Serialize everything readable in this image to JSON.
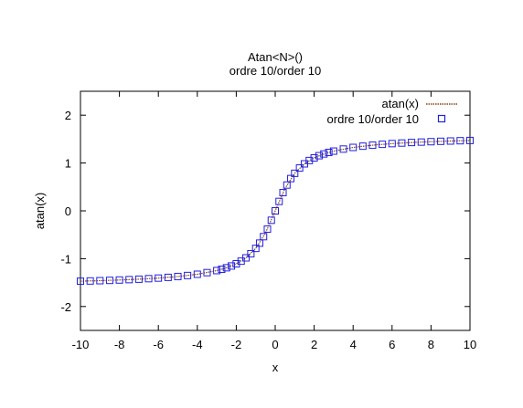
{
  "chart_data": {
    "type": "scatter",
    "title": "Atan<N>()",
    "subtitle": "ordre 10/order 10",
    "xlabel": "x",
    "ylabel": "atan(x)",
    "xlim": [
      -10,
      10
    ],
    "ylim": [
      -2.5,
      2.5
    ],
    "xticks": [
      "-10",
      "-8",
      "-6",
      "-4",
      "-2",
      "0",
      "2",
      "4",
      "6",
      "8",
      "10"
    ],
    "yticks": [
      "-2",
      "-1",
      "0",
      "1",
      "2"
    ],
    "grid": false,
    "legend_position": "top-right",
    "series": [
      {
        "name": "atan(x)",
        "style": "dotted-line",
        "color": "#8b4513",
        "x": [
          -10,
          -9,
          -8,
          -7,
          -6,
          -5,
          -4,
          -3,
          -2.5,
          -2,
          -1.5,
          -1,
          -0.5,
          0,
          0.5,
          1,
          1.5,
          2,
          2.5,
          3,
          4,
          5,
          6,
          7,
          8,
          9,
          10
        ],
        "y": [
          -1.471,
          -1.46,
          -1.446,
          -1.429,
          -1.406,
          -1.373,
          -1.326,
          -1.249,
          -1.19,
          -1.107,
          -0.983,
          -0.785,
          -0.464,
          0,
          0.464,
          0.785,
          0.983,
          1.107,
          1.19,
          1.249,
          1.326,
          1.373,
          1.406,
          1.429,
          1.446,
          1.46,
          1.471
        ]
      },
      {
        "name": "ordre 10/order 10",
        "style": "open-square",
        "color": "#2020e0",
        "x": [
          -10,
          -9.5,
          -9,
          -8.5,
          -8,
          -7.5,
          -7,
          -6.5,
          -6,
          -5.5,
          -5,
          -4.5,
          -4,
          -3.5,
          -3,
          -2.75,
          -2.5,
          -2.25,
          -2,
          -1.75,
          -1.5,
          -1.25,
          -1,
          -0.8,
          -0.6,
          -0.4,
          -0.2,
          0,
          0.2,
          0.4,
          0.6,
          0.8,
          1,
          1.25,
          1.5,
          1.75,
          2,
          2.25,
          2.5,
          2.75,
          3,
          3.5,
          4,
          4.5,
          5,
          5.5,
          6,
          6.5,
          7,
          7.5,
          8,
          8.5,
          9,
          9.5,
          10
        ],
        "y": [
          -1.471,
          -1.466,
          -1.46,
          -1.454,
          -1.446,
          -1.438,
          -1.429,
          -1.418,
          -1.406,
          -1.391,
          -1.373,
          -1.352,
          -1.326,
          -1.292,
          -1.249,
          -1.222,
          -1.19,
          -1.153,
          -1.107,
          -1.052,
          -0.983,
          -0.896,
          -0.785,
          -0.675,
          -0.54,
          -0.381,
          -0.197,
          0,
          0.197,
          0.381,
          0.54,
          0.675,
          0.785,
          0.896,
          0.983,
          1.052,
          1.107,
          1.153,
          1.19,
          1.222,
          1.249,
          1.292,
          1.326,
          1.352,
          1.373,
          1.391,
          1.406,
          1.418,
          1.429,
          1.438,
          1.446,
          1.454,
          1.46,
          1.466,
          1.471
        ]
      }
    ]
  }
}
